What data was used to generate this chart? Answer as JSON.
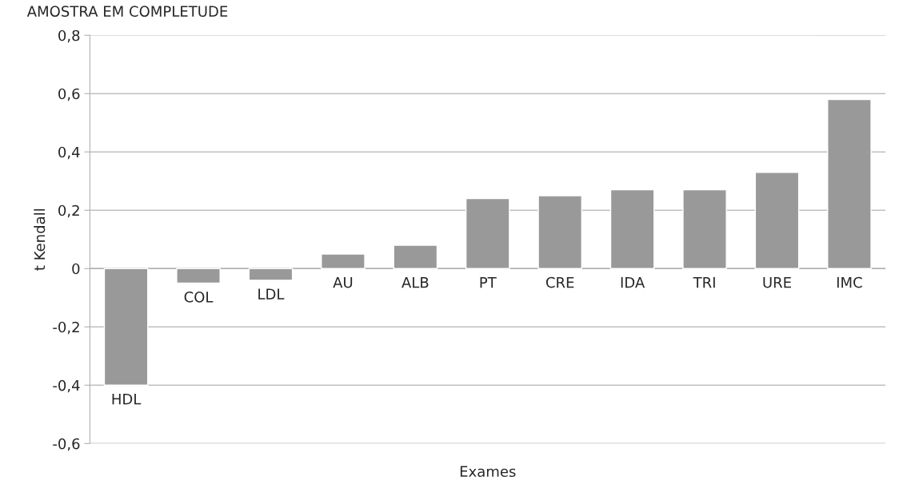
{
  "chart_data": {
    "type": "bar",
    "title": "AMOSTRA EM COMPLETUDE",
    "xlabel": "Exames",
    "ylabel": "t Kendall",
    "categories": [
      "HDL",
      "COL",
      "LDL",
      "AU",
      "ALB",
      "PT",
      "CRE",
      "IDA",
      "TRI",
      "URE",
      "IMC"
    ],
    "values": [
      -0.4,
      -0.05,
      -0.04,
      0.05,
      0.08,
      0.24,
      0.25,
      0.27,
      0.27,
      0.33,
      0.58
    ],
    "color": "#999999",
    "ylim": [
      -0.6,
      0.8
    ],
    "yticks": [
      {
        "value": -0.6,
        "label": "-0,6"
      },
      {
        "value": -0.4,
        "label": "-0,4"
      },
      {
        "value": -0.2,
        "label": "-0,2"
      },
      {
        "value": 0,
        "label": "0"
      },
      {
        "value": 0.2,
        "label": "0,2"
      },
      {
        "value": 0.4,
        "label": "0,4"
      },
      {
        "value": 0.6,
        "label": "0,6"
      },
      {
        "value": 0.8,
        "label": "0,8"
      }
    ],
    "grid": "y"
  }
}
